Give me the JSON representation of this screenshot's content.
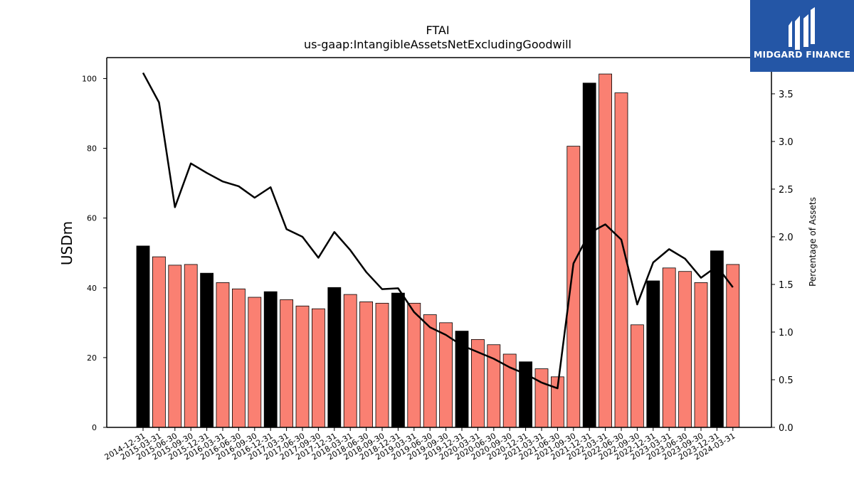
{
  "chart_data": {
    "type": "bar",
    "title": "FTAI",
    "subtitle": "us-gaap:IntangibleAssetsNetExcludingGoodwill",
    "ylabel": "USDm",
    "y2label": "Percentage of Assets",
    "ylim": [
      0,
      106
    ],
    "y2lim": [
      0,
      3.88
    ],
    "yticks": [
      0,
      20,
      40,
      60,
      80,
      100
    ],
    "y2ticks": [
      "0.0",
      "0.5",
      "1.0",
      "1.5",
      "2.0",
      "2.5",
      "3.0",
      "3.5"
    ],
    "categories": [
      "2014-12-31",
      "2015-03-31",
      "2015-06-30",
      "2015-09-30",
      "2015-12-31",
      "2016-03-31",
      "2016-06-30",
      "2016-09-30",
      "2016-12-31",
      "2017-03-31",
      "2017-06-30",
      "2017-09-30",
      "2017-12-31",
      "2018-03-31",
      "2018-06-30",
      "2018-09-30",
      "2018-12-31",
      "2019-03-31",
      "2019-06-30",
      "2019-09-30",
      "2019-12-31",
      "2020-03-31",
      "2020-06-30",
      "2020-09-30",
      "2020-12-31",
      "2021-03-31",
      "2021-06-30",
      "2021-09-30",
      "2021-12-31",
      "2022-03-31",
      "2022-06-30",
      "2022-09-30",
      "2022-12-31",
      "2023-03-31",
      "2023-06-30",
      "2023-09-30",
      "2023-12-31",
      "2024-03-31"
    ],
    "series": [
      {
        "type": "bar",
        "values": [
          52.0,
          48.9,
          46.5,
          46.7,
          44.2,
          41.5,
          39.7,
          37.3,
          38.9,
          36.6,
          34.8,
          34.0,
          40.1,
          38.1,
          36.0,
          35.6,
          38.5,
          35.6,
          32.3,
          30.0,
          27.6,
          25.2,
          23.7,
          21.0,
          18.8,
          16.8,
          14.5,
          80.6,
          98.7,
          101.3,
          95.9,
          29.4,
          42.0,
          45.7,
          44.7,
          41.5,
          50.6,
          46.7
        ]
      },
      {
        "type": "line",
        "axis": "right",
        "values": [
          3.72,
          3.41,
          2.31,
          2.77,
          2.67,
          2.58,
          2.53,
          2.41,
          2.52,
          2.08,
          2.0,
          1.78,
          2.05,
          1.86,
          1.63,
          1.45,
          1.46,
          1.21,
          1.05,
          0.97,
          0.86,
          0.79,
          0.72,
          0.63,
          0.56,
          0.47,
          0.41,
          1.72,
          2.04,
          2.13,
          1.97,
          1.29,
          1.73,
          1.87,
          1.77,
          1.57,
          1.69,
          1.47
        ]
      }
    ],
    "annual_color": "#000000",
    "quarter_color": "#fa8072",
    "line_color": "#000000"
  },
  "logo": {
    "text": "MIDGARD FINANCE",
    "bg": "#2456a6"
  }
}
